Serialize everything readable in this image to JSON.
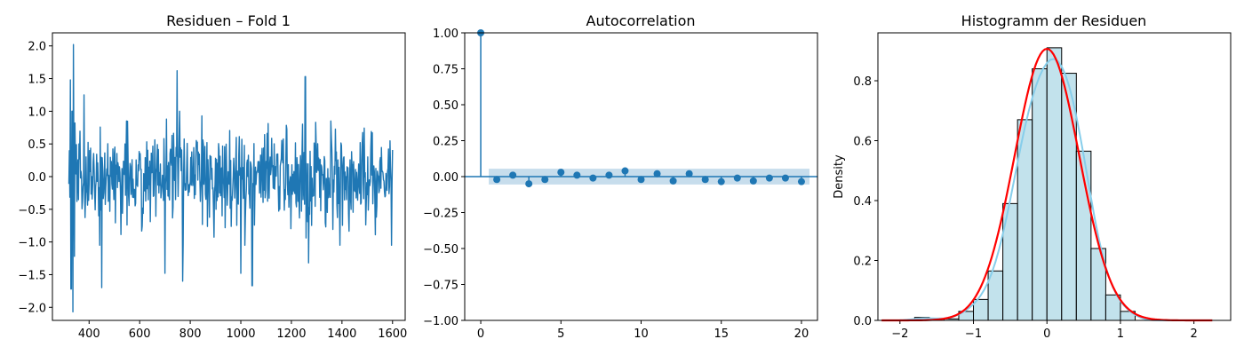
{
  "chart_data": [
    {
      "type": "line",
      "title": "Residuen – Fold 1",
      "xlabel": "",
      "ylabel": "",
      "xlim": [
        255,
        1650
      ],
      "ylim": [
        -2.2,
        2.2
      ],
      "xticks": [
        400,
        600,
        800,
        1000,
        1200,
        1400,
        1600
      ],
      "yticks": [
        -2.0,
        -1.5,
        -1.0,
        -0.5,
        0.0,
        0.5,
        1.0,
        1.5,
        2.0
      ],
      "ytick_labels": [
        "−2.0",
        "−1.5",
        "−1.0",
        "−0.5",
        "0.0",
        "0.5",
        "1.0",
        "1.5",
        "2.0"
      ],
      "x_start": 320,
      "x_end": 1600,
      "color": "#1f77b4",
      "notable_points": [
        {
          "x": 326,
          "y": 1.48
        },
        {
          "x": 329,
          "y": -1.72
        },
        {
          "x": 333,
          "y": 1.0
        },
        {
          "x": 336,
          "y": -2.07
        },
        {
          "x": 338,
          "y": 2.02
        },
        {
          "x": 342,
          "y": -1.22
        },
        {
          "x": 380,
          "y": 1.25
        },
        {
          "x": 450,
          "y": -1.7
        },
        {
          "x": 700,
          "y": -1.48
        },
        {
          "x": 748,
          "y": 1.62
        },
        {
          "x": 770,
          "y": -1.6
        },
        {
          "x": 1000,
          "y": -1.48
        },
        {
          "x": 1045,
          "y": -1.67
        },
        {
          "x": 1255,
          "y": 1.53
        },
        {
          "x": 1268,
          "y": -1.32
        }
      ]
    },
    {
      "type": "scatter",
      "subtype": "acf-stem",
      "title": "Autocorrelation",
      "xlabel": "",
      "ylabel": "",
      "xlim": [
        -1,
        21
      ],
      "ylim": [
        -1.0,
        1.0
      ],
      "xticks": [
        0,
        5,
        10,
        15,
        20
      ],
      "yticks": [
        -1.0,
        -0.75,
        -0.5,
        -0.25,
        0.0,
        0.25,
        0.5,
        0.75,
        1.0
      ],
      "ytick_labels": [
        "−1.00",
        "−0.75",
        "−0.50",
        "−0.25",
        "0.00",
        "0.25",
        "0.50",
        "0.75",
        "1.00"
      ],
      "confidence_band": [
        -0.055,
        0.055
      ],
      "lags": [
        0,
        1,
        2,
        3,
        4,
        5,
        6,
        7,
        8,
        9,
        10,
        11,
        12,
        13,
        14,
        15,
        16,
        17,
        18,
        19,
        20
      ],
      "values": [
        1.0,
        -0.02,
        0.01,
        -0.05,
        -0.02,
        0.03,
        0.01,
        -0.01,
        0.01,
        0.04,
        -0.02,
        0.02,
        -0.03,
        0.02,
        -0.02,
        -0.035,
        -0.01,
        -0.03,
        -0.01,
        -0.01,
        -0.035
      ],
      "color": "#1f77b4"
    },
    {
      "type": "bar",
      "subtype": "histogram",
      "title": "Histogramm der Residuen",
      "xlabel": "",
      "ylabel": "Density",
      "xlim": [
        -2.3,
        2.5
      ],
      "ylim": [
        0,
        0.96
      ],
      "xticks": [
        -2,
        -1,
        0,
        1,
        2
      ],
      "xtick_labels": [
        "−2",
        "−1",
        "0",
        "1",
        "2"
      ],
      "yticks": [
        0.0,
        0.2,
        0.4,
        0.6,
        0.8
      ],
      "ytick_labels": [
        "0.0",
        "0.2",
        "0.4",
        "0.6",
        "0.8"
      ],
      "bin_edges": [
        -1.8,
        -1.6,
        -1.4,
        -1.2,
        -1.0,
        -0.8,
        -0.6,
        -0.4,
        -0.2,
        0.0,
        0.2,
        0.4,
        0.6,
        0.8,
        1.0,
        1.2
      ],
      "densities": [
        0.01,
        0.005,
        0.005,
        0.03,
        0.07,
        0.165,
        0.39,
        0.67,
        0.84,
        0.91,
        0.825,
        0.565,
        0.24,
        0.085,
        0.03
      ],
      "bar_color": "#add8e6",
      "normal_fit": {
        "mean": 0.0,
        "std": 0.44,
        "color": "#ff0000",
        "range": [
          -2.25,
          2.25
        ]
      },
      "kde_color": "#87ceeb"
    }
  ]
}
